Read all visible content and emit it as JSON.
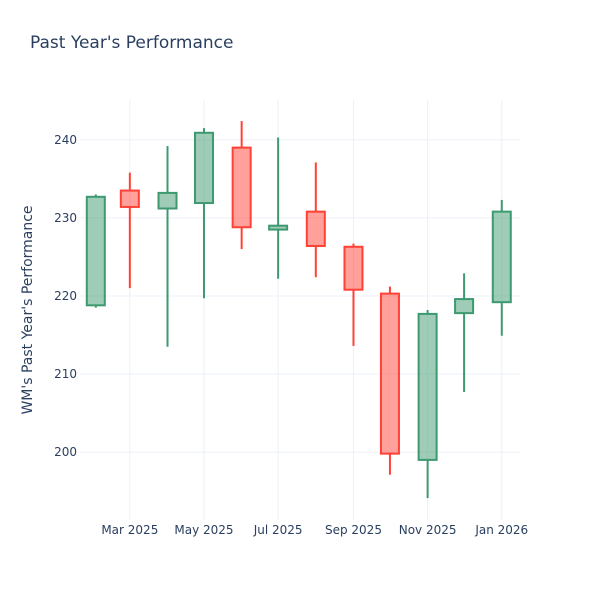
{
  "chart_data": {
    "type": "candlestick",
    "title": "Past Year's Performance",
    "xlabel": "",
    "ylabel": "WM's Past Year's Performance",
    "ylim": [
      191.3,
      245.1
    ],
    "yticks": [
      200,
      210,
      220,
      230,
      240
    ],
    "xticks": [
      {
        "date": "2025-03-01",
        "label": "Mar 2025"
      },
      {
        "date": "2025-05-01",
        "label": "May 2025"
      },
      {
        "date": "2025-07-01",
        "label": "Jul 2025"
      },
      {
        "date": "2025-09-01",
        "label": "Sep 2025"
      },
      {
        "date": "2025-11-01",
        "label": "Nov 2025"
      },
      {
        "date": "2026-01-01",
        "label": "Jan 2026"
      }
    ],
    "grid": true,
    "colors": {
      "increasing": "#3D9970",
      "decreasing": "#FF4136",
      "grid": "#EBF0F8"
    },
    "candles": [
      {
        "date": "2025-02-01",
        "open": 218.8,
        "high": 233.0,
        "low": 218.5,
        "close": 232.7
      },
      {
        "date": "2025-03-01",
        "open": 233.5,
        "high": 235.8,
        "low": 221.0,
        "close": 231.4
      },
      {
        "date": "2025-04-01",
        "open": 231.2,
        "high": 239.2,
        "low": 213.5,
        "close": 233.2
      },
      {
        "date": "2025-05-01",
        "open": 231.9,
        "high": 241.5,
        "low": 219.7,
        "close": 240.9
      },
      {
        "date": "2025-06-01",
        "open": 239.0,
        "high": 242.4,
        "low": 226.0,
        "close": 228.8
      },
      {
        "date": "2025-07-01",
        "open": 228.5,
        "high": 240.3,
        "low": 222.2,
        "close": 229.0
      },
      {
        "date": "2025-08-01",
        "open": 230.8,
        "high": 237.1,
        "low": 222.4,
        "close": 226.4
      },
      {
        "date": "2025-09-01",
        "open": 226.3,
        "high": 226.7,
        "low": 213.6,
        "close": 220.8
      },
      {
        "date": "2025-10-01",
        "open": 220.3,
        "high": 221.2,
        "low": 197.1,
        "close": 199.8
      },
      {
        "date": "2025-11-01",
        "open": 199.0,
        "high": 218.2,
        "low": 194.1,
        "close": 217.7
      },
      {
        "date": "2025-12-01",
        "open": 217.8,
        "high": 222.9,
        "low": 207.7,
        "close": 219.6
      },
      {
        "date": "2026-01-01",
        "open": 219.2,
        "high": 232.3,
        "low": 214.9,
        "close": 230.8
      }
    ]
  }
}
